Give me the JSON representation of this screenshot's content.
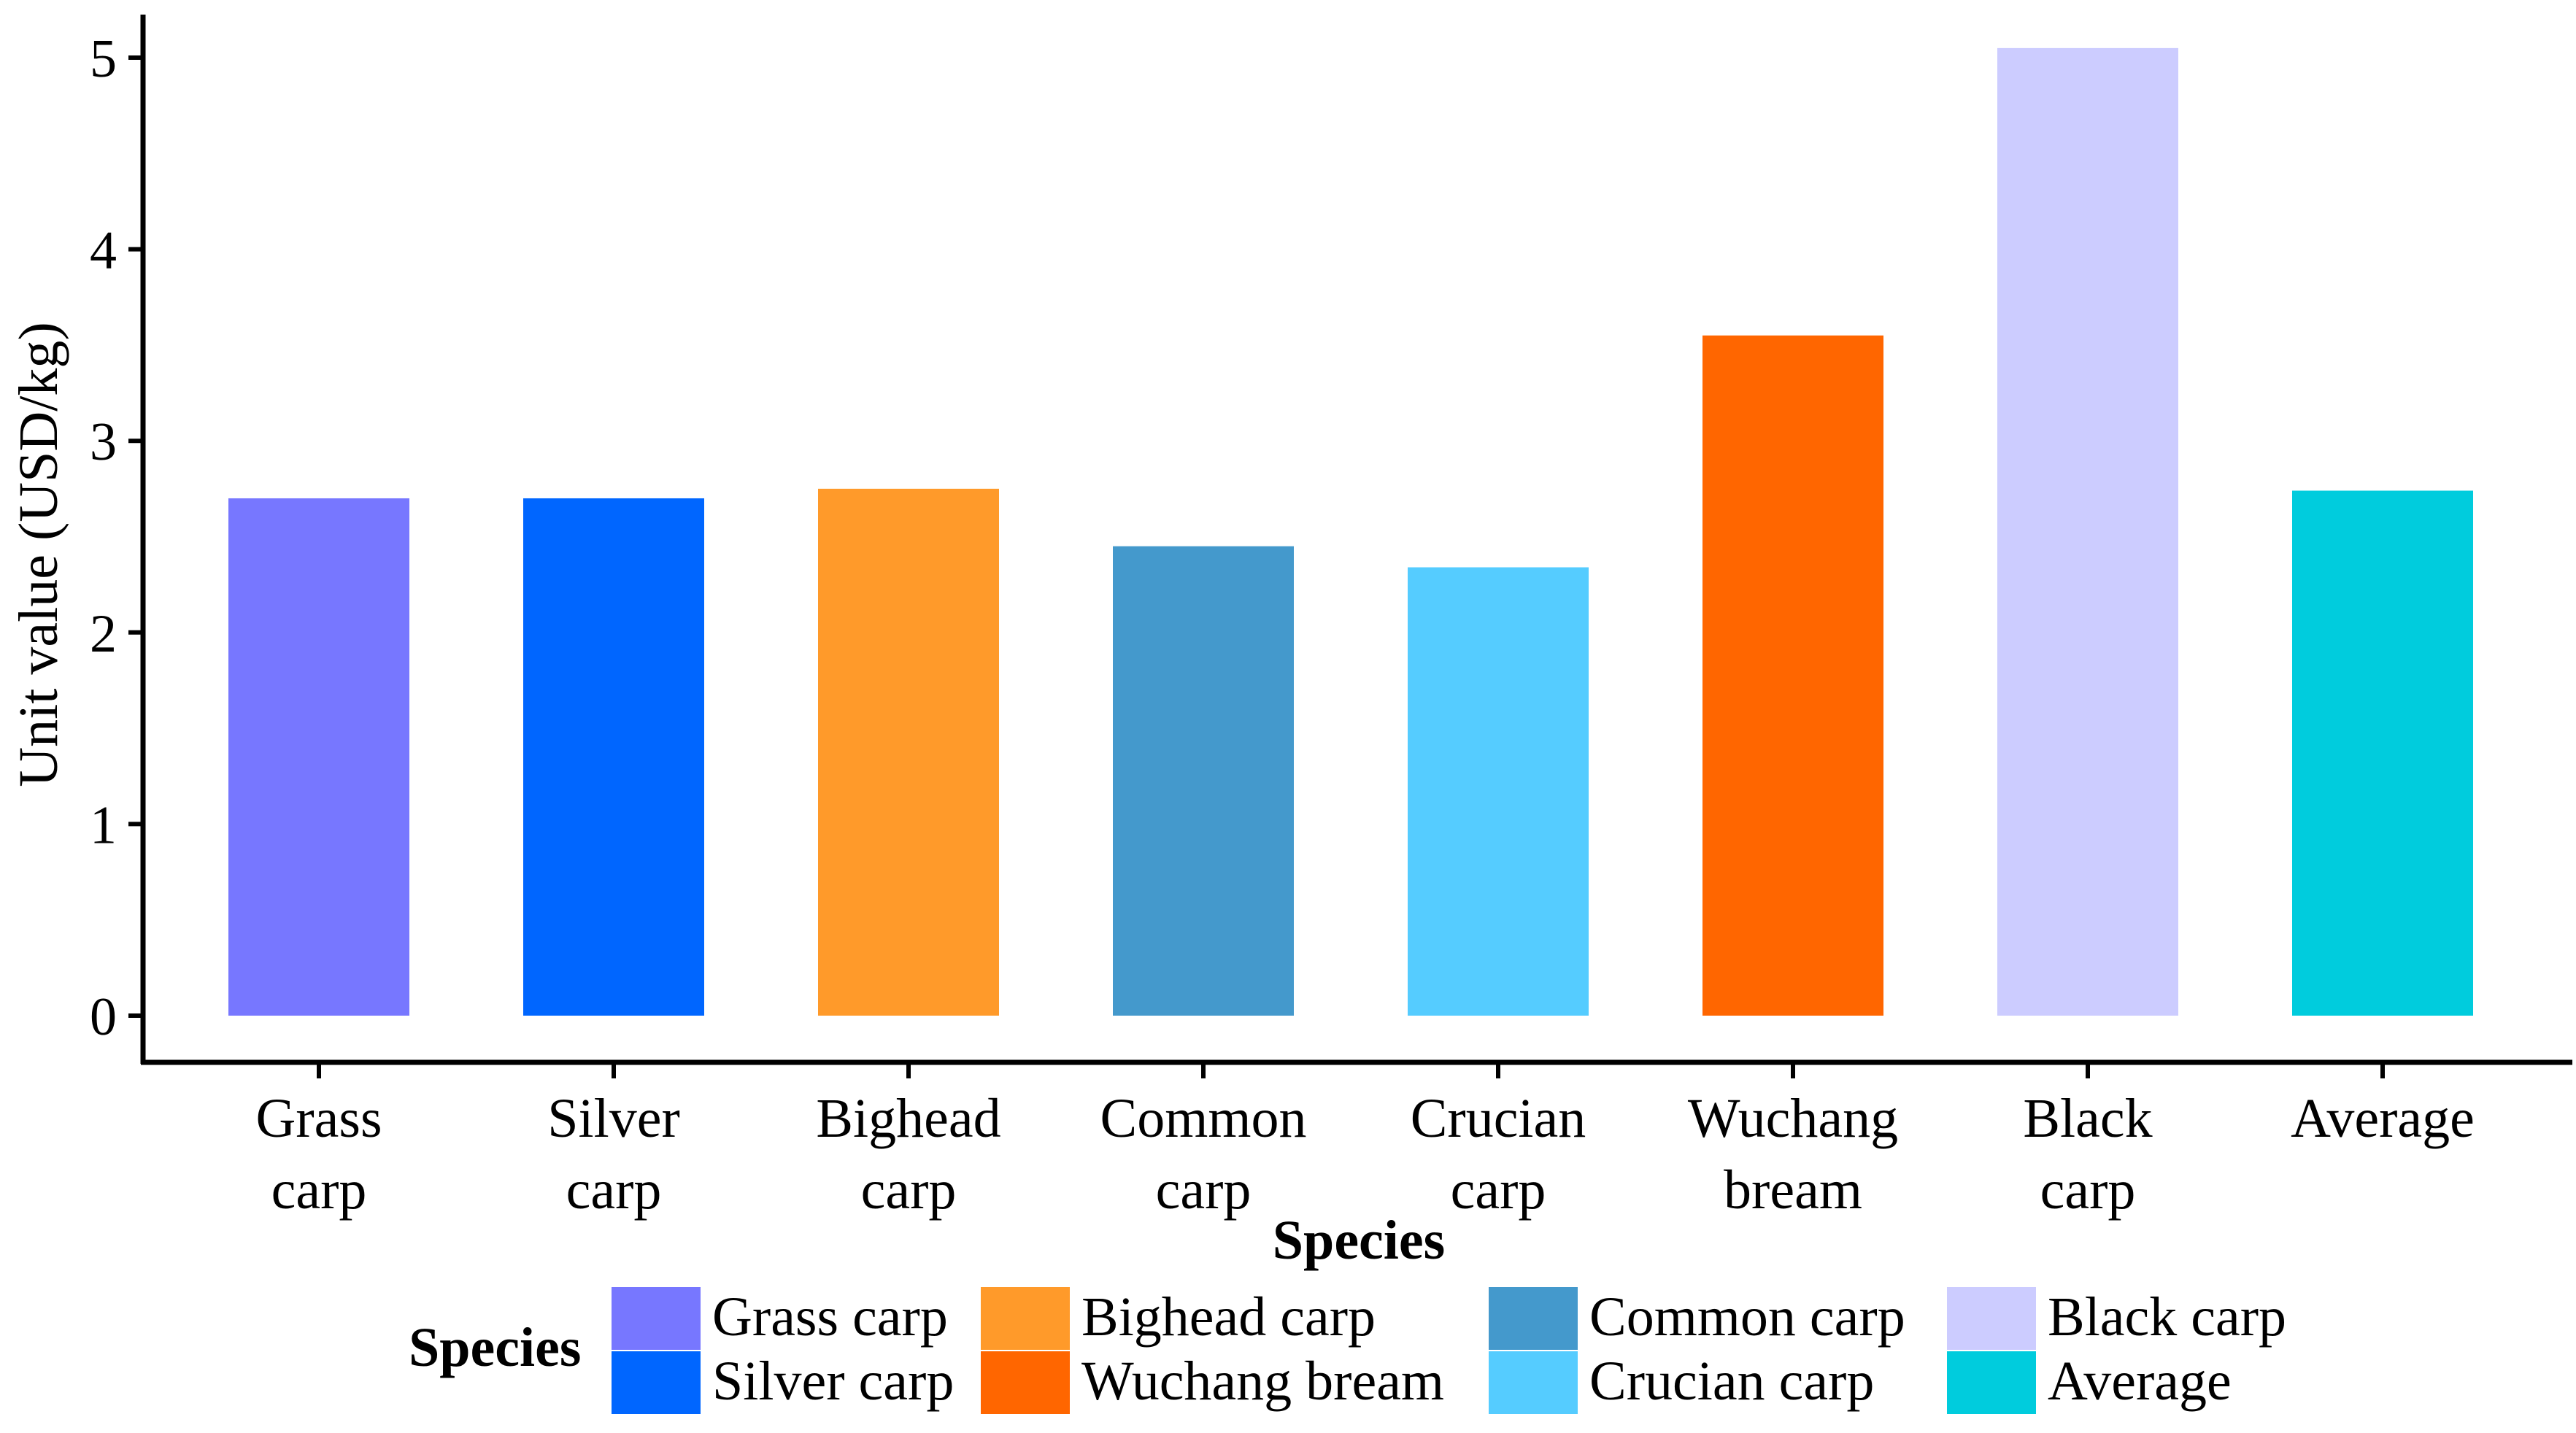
{
  "chart_data": {
    "type": "bar",
    "categories": [
      [
        "Grass",
        "carp"
      ],
      [
        "Silver",
        "carp"
      ],
      [
        "Bighead",
        "carp"
      ],
      [
        "Common",
        "carp"
      ],
      [
        "Crucian",
        "carp"
      ],
      [
        "Wuchang",
        "bream"
      ],
      [
        "Black",
        "carp"
      ],
      [
        "Average"
      ]
    ],
    "values": [
      2.7,
      2.7,
      2.75,
      2.45,
      2.34,
      3.55,
      5.05,
      2.74
    ],
    "colors": [
      "#7777ff",
      "#0066ff",
      "#ff9a2a",
      "#4499cc",
      "#55ccff",
      "#ff6600",
      "#ccccff",
      "#00ccdd"
    ],
    "xlabel": "Species",
    "ylabel": "Unit value (USD/kg)",
    "ylim": [
      0,
      5.2
    ],
    "yticks": [
      0,
      1,
      2,
      3,
      4,
      5
    ],
    "grid": false,
    "legend": {
      "title": "Species",
      "position": "bottom",
      "items": [
        {
          "label": "Grass carp",
          "color": "#7777ff"
        },
        {
          "label": "Silver carp",
          "color": "#0066ff"
        },
        {
          "label": "Bighead carp",
          "color": "#ff9a2a"
        },
        {
          "label": "Wuchang bream",
          "color": "#ff6600"
        },
        {
          "label": "Common carp",
          "color": "#4499cc"
        },
        {
          "label": "Crucian carp",
          "color": "#55ccff"
        },
        {
          "label": "Black carp",
          "color": "#ccccff"
        },
        {
          "label": "Average",
          "color": "#00ccdd"
        }
      ]
    }
  }
}
